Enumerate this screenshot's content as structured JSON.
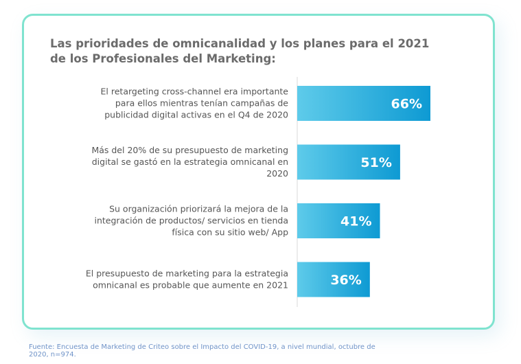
{
  "title": "Las prioridades de omnicanalidad y los planes para el 2021 de los Profesionales del Marketing:",
  "source": "Fuente: Encuesta de Marketing de Criteo sobre el Impacto del COVID-19, a nivel mundial, octubre de 2020, n=974.",
  "colors": {
    "bar_start": "#5ecbea",
    "bar_end": "#0e9ad3",
    "border": "#7fe3cf",
    "axis": "#d9d9d9"
  },
  "chart_data": {
    "type": "bar",
    "orientation": "horizontal",
    "categories": [
      [
        "El retargeting cross-channel era importante",
        "para ellos mientras tenían campañas de",
        "publicidad digital activas en el Q4 de 2020"
      ],
      [
        "Más del 20% de su presupuesto de marketing",
        "digital se gastó en la estrategia omnicanal en",
        "2020"
      ],
      [
        "Su organización priorizará la mejora de la",
        "integración de productos/ servicios en tienda",
        "física con su sitio web/ App"
      ],
      [
        "El presupuesto de marketing para la estrategia",
        "omnicanal es probable que aumente en 2021"
      ]
    ],
    "values": [
      66,
      51,
      41,
      36
    ],
    "value_labels": [
      "66%",
      "51%",
      "41%",
      "36%"
    ],
    "xlim": [
      0,
      66
    ],
    "grid": false
  }
}
